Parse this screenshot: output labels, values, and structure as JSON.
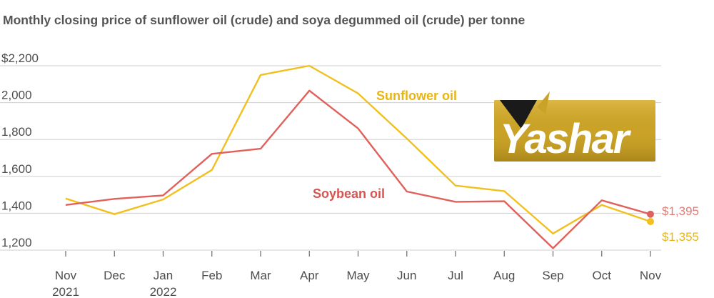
{
  "title": "Monthly closing price of sunflower oil (crude) and soya degummed oil (crude) per tonne",
  "logo": {
    "text": "Yashar",
    "colors": {
      "gold": "#c9a227",
      "dark": "#1a1a1a"
    }
  },
  "chart_data": {
    "type": "line",
    "title": "Monthly closing price of sunflower oil (crude) and soya degummed oil (crude) per tonne",
    "categories": [
      "Nov",
      "Dec",
      "Jan",
      "Feb",
      "Mar",
      "Apr",
      "May",
      "Jun",
      "Jul",
      "Aug",
      "Sep",
      "Oct",
      "Nov"
    ],
    "category_sublabels": [
      "2021",
      "",
      "2022",
      "",
      "",
      "",
      "",
      "",
      "",
      "",
      "",
      "",
      ""
    ],
    "ylim": [
      1200,
      2200
    ],
    "y_ticks": [
      1200,
      1400,
      1600,
      1800,
      2000,
      2200
    ],
    "y_tick_labels": [
      "1,200",
      "1,400",
      "1,600",
      "1,800",
      "2,000",
      "$2,200"
    ],
    "grid": true,
    "series": [
      {
        "name": "Sunflower oil",
        "color": "#f2c01e",
        "values": [
          1480,
          1395,
          1475,
          1635,
          2150,
          2200,
          2050,
          1805,
          1550,
          1520,
          1290,
          1445,
          1355
        ],
        "end_label": "$1,355"
      },
      {
        "name": "Soybean oil",
        "color": "#e0615c",
        "values": [
          1445,
          1478,
          1497,
          1722,
          1750,
          2065,
          1860,
          1518,
          1462,
          1465,
          1210,
          1470,
          1395
        ],
        "end_label": "$1,395"
      }
    ]
  }
}
